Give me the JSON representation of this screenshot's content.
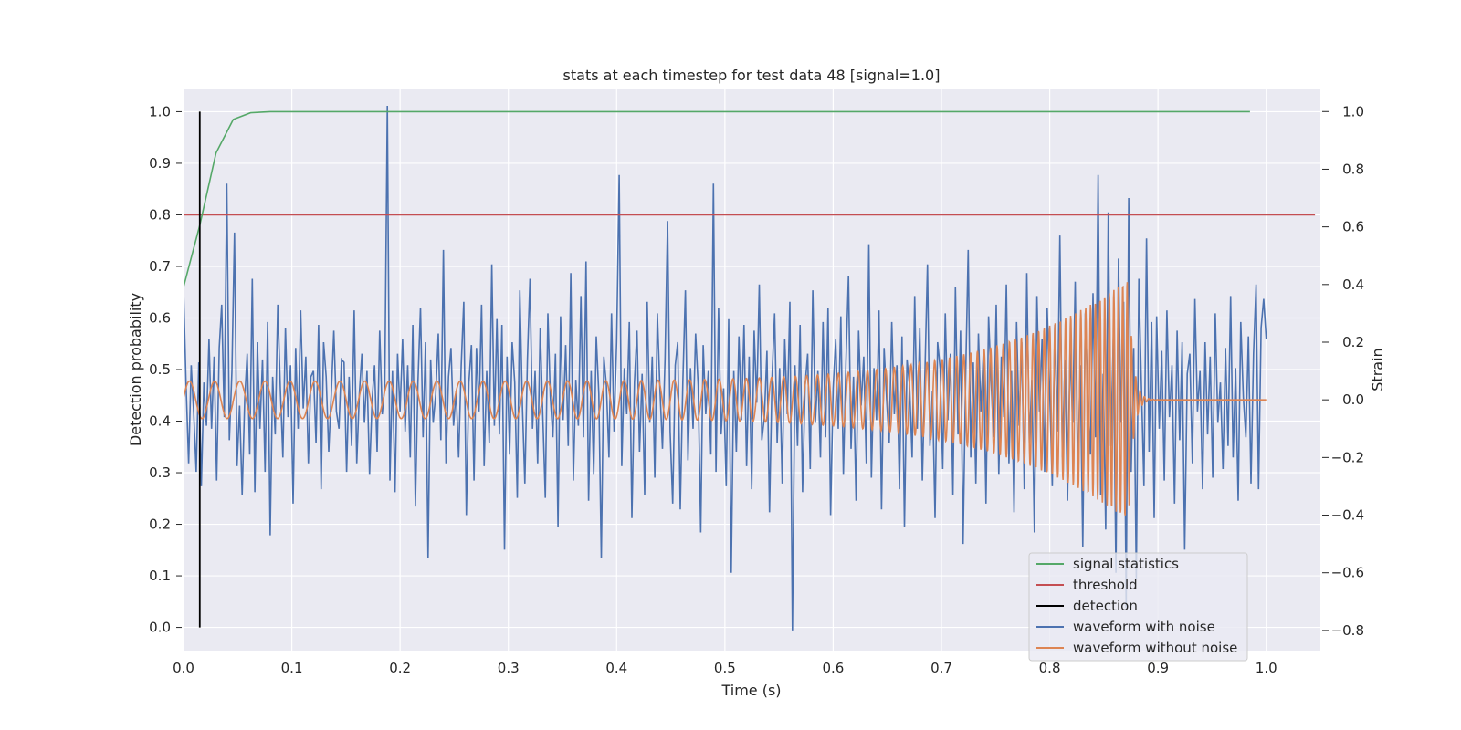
{
  "chart_data": {
    "type": "line",
    "title": "stats at each timestep for test data 48 [signal=1.0]",
    "xlabel": "Time (s)",
    "ylabel_left": "Detection probability",
    "ylabel_right": "Strain",
    "xlim": [
      0.0,
      1.05
    ],
    "ylim_left": [
      -0.045,
      1.045
    ],
    "ylim_right": [
      -0.87,
      1.08
    ],
    "x_ticks": [
      "0.0",
      "0.1",
      "0.2",
      "0.3",
      "0.4",
      "0.5",
      "0.6",
      "0.7",
      "0.8",
      "0.9",
      "1.0"
    ],
    "y_ticks_left": [
      "0.0",
      "0.1",
      "0.2",
      "0.3",
      "0.4",
      "0.5",
      "0.6",
      "0.7",
      "0.8",
      "0.9",
      "1.0"
    ],
    "y_ticks_right": [
      "−0.8",
      "−0.6",
      "−0.4",
      "−0.2",
      "0.0",
      "0.2",
      "0.4",
      "0.6",
      "0.8",
      "1.0"
    ],
    "grid": true,
    "legend_position": "lower-right",
    "colors": {
      "signal_statistics": "#55a868",
      "threshold": "#c44e52",
      "detection": "#000000",
      "waveform_with_noise": "#4c72b0",
      "waveform_without_noise": "#dd8452",
      "plot_background": "#eaeaf2",
      "grid": "#ffffff"
    },
    "series": [
      {
        "name": "signal statistics",
        "axis": "left",
        "x": [
          0.0,
          0.015,
          0.03,
          0.046,
          0.062,
          0.08,
          0.1,
          0.2,
          0.4,
          0.6,
          0.8,
          0.985
        ],
        "y": [
          0.66,
          0.78,
          0.92,
          0.985,
          0.998,
          1.0,
          1.0,
          1.0,
          1.0,
          1.0,
          1.0,
          1.0
        ]
      },
      {
        "name": "threshold",
        "axis": "left",
        "x": [
          0.0,
          1.045
        ],
        "y": [
          0.8,
          0.8
        ]
      },
      {
        "name": "detection",
        "axis": "left",
        "x": [
          0.015,
          0.015
        ],
        "y": [
          0.0,
          1.0
        ]
      },
      {
        "name": "waveform with noise",
        "axis": "right",
        "x_range": [
          0.0,
          1.0
        ],
        "values": [
          0.38,
          0.05,
          -0.22,
          0.12,
          -0.05,
          -0.25,
          0.13,
          -0.3,
          0.06,
          -0.09,
          0.21,
          -0.1,
          0.15,
          -0.28,
          0.18,
          0.33,
          -0.06,
          0.75,
          -0.14,
          0.1,
          0.58,
          -0.23,
          -0.02,
          -0.33,
          0.0,
          0.16,
          -0.19,
          0.42,
          -0.32,
          0.2,
          -0.1,
          0.14,
          -0.25,
          0.27,
          -0.47,
          0.08,
          -0.12,
          0.33,
          0.04,
          -0.2,
          0.25,
          -0.06,
          0.12,
          -0.36,
          0.18,
          -0.1,
          0.31,
          -0.03,
          0.15,
          -0.22,
          0.08,
          0.1,
          -0.15,
          0.26,
          -0.31,
          0.2,
          0.08,
          -0.18,
          0.02,
          0.24,
          -0.04,
          -0.1,
          0.14,
          0.13,
          -0.25,
          0.08,
          -0.16,
          0.31,
          -0.22,
          0.02,
          0.16,
          -0.08,
          0.1,
          -0.26,
          0.0,
          0.12,
          -0.18,
          0.24,
          -0.05,
          0.05,
          1.02,
          -0.28,
          0.1,
          -0.32,
          0.16,
          -0.04,
          0.21,
          -0.11,
          0.12,
          -0.2,
          0.26,
          -0.37,
          0.06,
          0.32,
          -0.13,
          0.2,
          -0.55,
          0.14,
          -0.08,
          0.02,
          0.23,
          -0.14,
          0.52,
          -0.22,
          0.08,
          0.18,
          -0.09,
          0.03,
          -0.2,
          0.12,
          0.34,
          -0.4,
          0.06,
          0.19,
          -0.28,
          0.18,
          -0.04,
          0.33,
          -0.23,
          0.1,
          -0.15,
          0.47,
          -0.09,
          0.28,
          -0.12,
          0.26,
          -0.52,
          0.15,
          -0.19,
          0.2,
          0.06,
          -0.34,
          0.38,
          -0.02,
          -0.29,
          0.14,
          0.42,
          -0.1,
          0.1,
          -0.22,
          0.25,
          -0.05,
          -0.34,
          0.3,
          0.01,
          -0.13,
          0.16,
          -0.44,
          0.29,
          -0.07,
          0.19,
          -0.16,
          0.44,
          -0.28,
          0.07,
          -0.09,
          0.36,
          -0.13,
          0.48,
          -0.35,
          0.1,
          -0.26,
          0.22,
          0.02,
          -0.55,
          0.15,
          0.05,
          -0.2,
          0.3,
          -0.11,
          0.2,
          0.78,
          -0.23,
          0.11,
          -0.05,
          0.27,
          -0.41,
          0.06,
          0.24,
          -0.18,
          0.09,
          -0.33,
          0.34,
          -0.08,
          0.15,
          -0.27,
          0.3,
          0.04,
          -0.17,
          0.14,
          0.62,
          -0.11,
          -0.36,
          0.12,
          0.2,
          -0.38,
          0.06,
          0.38,
          -0.21,
          0.11,
          -0.1,
          0.23,
          0.05,
          -0.46,
          0.19,
          -0.05,
          0.1,
          -0.19,
          0.75,
          -0.25,
          0.32,
          -0.12,
          0.04,
          -0.3,
          0.28,
          -0.6,
          0.1,
          -0.18,
          0.22,
          -0.07,
          0.26,
          -0.23,
          0.15,
          -0.31,
          0.24,
          -0.01,
          0.4,
          -0.14,
          -0.06,
          0.17,
          -0.39,
          0.08,
          0.3,
          -0.15,
          0.11,
          -0.29,
          0.21,
          -0.05,
          0.34,
          -0.8,
          0.12,
          -0.16,
          0.26,
          -0.32,
          0.05,
          0.16,
          -0.24,
          0.38,
          -0.08,
          0.1,
          -0.2,
          0.27,
          -0.13,
          0.32,
          -0.4,
          0.04,
          0.21,
          -0.1,
          0.29,
          -0.26,
          0.13,
          0.43,
          -0.17,
          0.08,
          -0.35,
          0.24,
          -0.02,
          0.15,
          -0.22,
          0.54,
          -0.27,
          0.11,
          -0.07,
          0.31,
          -0.38,
          0.18,
          0.0,
          -0.15,
          0.27,
          -0.05,
          0.12,
          -0.31,
          0.22,
          -0.44,
          0.14,
          0.05,
          -0.2,
          0.36,
          -0.1,
          0.25,
          -0.28,
          0.09,
          0.47,
          -0.16,
          0.03,
          -0.41,
          0.2,
          0.11,
          -0.24,
          0.3,
          -0.07,
          0.16,
          -0.33,
          0.39,
          -0.12,
          0.24,
          -0.5,
          0.08,
          0.52,
          -0.2,
          0.13,
          -0.29,
          0.23,
          -0.04,
          0.17,
          -0.36,
          0.29,
          0.06,
          -0.13,
          0.33,
          -0.26,
          0.15,
          -0.06,
          0.4,
          -0.22,
          0.1,
          -0.39,
          0.27,
          -0.09,
          0.2,
          -0.31,
          0.44,
          -0.15,
          0.07,
          -0.46,
          0.36,
          -0.04,
          0.21,
          -0.25,
          0.32,
          0.02,
          -0.3,
          0.26,
          -0.11,
          0.57,
          -0.2,
          0.14,
          -0.35,
          0.18,
          -0.08,
          0.41,
          -0.27,
          0.12,
          -0.51,
          0.3,
          0.0,
          -0.19,
          0.37,
          -0.13,
          0.78,
          -0.33,
          0.09,
          -0.45,
          0.65,
          -0.16,
          0.22,
          -0.6,
          0.49,
          -0.08,
          0.34,
          -0.72,
          0.7,
          -0.25,
          0.18,
          -0.62,
          0.42,
          0.05,
          -0.3,
          0.56,
          -0.18,
          0.27,
          -0.41,
          0.29,
          -0.1,
          0.17,
          -0.28,
          0.31,
          -0.06,
          0.12,
          -0.36,
          0.24,
          -0.14,
          0.2,
          -0.52,
          0.09,
          0.16,
          -0.22,
          0.35,
          -0.04,
          0.1,
          -0.31,
          0.2,
          -0.12,
          0.15,
          -0.27,
          0.3,
          -0.08,
          0.06,
          -0.24,
          0.18,
          -0.16,
          0.36,
          -0.2,
          0.11,
          -0.35,
          0.27,
          0.01,
          -0.13,
          0.22,
          -0.29,
          0.16,
          0.4,
          -0.31,
          0.25,
          0.35,
          0.21
        ]
      },
      {
        "name": "waveform without noise",
        "axis": "right",
        "x_range": [
          0.0,
          1.0
        ],
        "description_values": {
          "start_frequency_hz": 43,
          "end_frequency_hz": 250,
          "start_amplitude": 0.065,
          "peak_amplitude": 0.42,
          "merger_time_s": 0.873,
          "ringdown_end_s": 0.89
        }
      }
    ]
  }
}
